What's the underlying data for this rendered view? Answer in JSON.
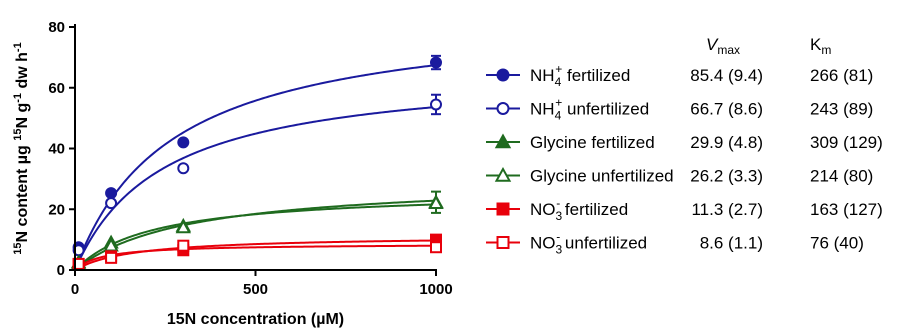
{
  "chart_data": {
    "type": "scatter",
    "xlabel": "15N concentration (µM)",
    "ylabel_parts": [
      "15",
      "N content µg ",
      "15",
      "N g",
      "-1",
      " dw h",
      "-1"
    ],
    "xlim": [
      0,
      1000
    ],
    "ylim": [
      0,
      80
    ],
    "x_ticks": [
      "0",
      "500",
      "1000"
    ],
    "y_ticks": [
      "0",
      "20",
      "40",
      "60",
      "80"
    ],
    "grid": false,
    "legend_position": "right",
    "table_headers": {
      "vmax": "max",
      "vmax_prefix": "V",
      "km": "m",
      "km_prefix": "K"
    },
    "series": [
      {
        "name": "NH4+ fertilized",
        "label_parts": [
          "NH",
          "4",
          "+",
          " fertilized"
        ],
        "color": "#1a1a9e",
        "marker": "circle",
        "filled": true,
        "x": [
          10,
          100,
          300,
          1000
        ],
        "y": [
          7.5,
          25.3,
          42.0,
          68.3
        ],
        "err": [
          0,
          0,
          0,
          2.2
        ],
        "vmax": 85.4,
        "km": 266,
        "vmax_text": "85.4 (9.4)",
        "km_text": "266 (81)"
      },
      {
        "name": "NH4+ unfertilized",
        "label_parts": [
          "NH",
          "4",
          "+",
          " unfertilized"
        ],
        "color": "#1a1a9e",
        "marker": "circle",
        "filled": false,
        "x": [
          10,
          100,
          300,
          1000
        ],
        "y": [
          6.5,
          22.0,
          33.5,
          54.5
        ],
        "err": [
          0,
          0,
          0,
          3.2
        ],
        "vmax": 66.7,
        "km": 243,
        "vmax_text": "66.7 (8.6)",
        "km_text": "243 (89)"
      },
      {
        "name": "Glycine fertilized",
        "label_parts": [
          "Glycine fertilized",
          "",
          "",
          ""
        ],
        "color": "#1f6b1f",
        "marker": "triangle",
        "filled": true,
        "x": [
          10,
          100,
          300,
          1000
        ],
        "y": [
          2.5,
          9.0,
          14.5,
          22.3
        ],
        "err": [
          0,
          0,
          0,
          3.5
        ],
        "vmax": 29.9,
        "km": 309,
        "vmax_text": "29.9 (4.8)",
        "km_text": "309 (129)"
      },
      {
        "name": "Glycine unfertilized",
        "label_parts": [
          "Glycine unfertilized",
          "",
          "",
          ""
        ],
        "color": "#1f6b1f",
        "marker": "triangle",
        "filled": false,
        "x": [
          10,
          100,
          300,
          1000
        ],
        "y": [
          2.0,
          8.0,
          14.0,
          22.0
        ],
        "err": [
          0,
          0,
          0,
          0
        ],
        "vmax": 26.2,
        "km": 214,
        "vmax_text": "26.2 (3.3)",
        "km_text": "214 (80)"
      },
      {
        "name": "NO3- fertilized",
        "label_parts": [
          "NO",
          "3",
          "-",
          " fertilized"
        ],
        "color": "#e8000b",
        "marker": "square",
        "filled": true,
        "x": [
          10,
          100,
          300,
          1000
        ],
        "y": [
          2.0,
          4.5,
          6.5,
          10.0
        ],
        "err": [
          0,
          0,
          0,
          0
        ],
        "vmax": 11.3,
        "km": 163,
        "vmax_text": "11.3 (2.7)",
        "km_text": "163 (127)"
      },
      {
        "name": "NO3- unfertilized",
        "label_parts": [
          "NO",
          "3",
          "-",
          " unfertilized"
        ],
        "color": "#e8000b",
        "marker": "square",
        "filled": false,
        "x": [
          10,
          100,
          300,
          1000
        ],
        "y": [
          2.0,
          4.0,
          8.0,
          7.5
        ],
        "err": [
          0,
          0,
          0,
          0
        ],
        "vmax": 8.6,
        "km": 76,
        "vmax_text": "8.6 (1.1)",
        "km_text": "76  (40)"
      }
    ]
  }
}
